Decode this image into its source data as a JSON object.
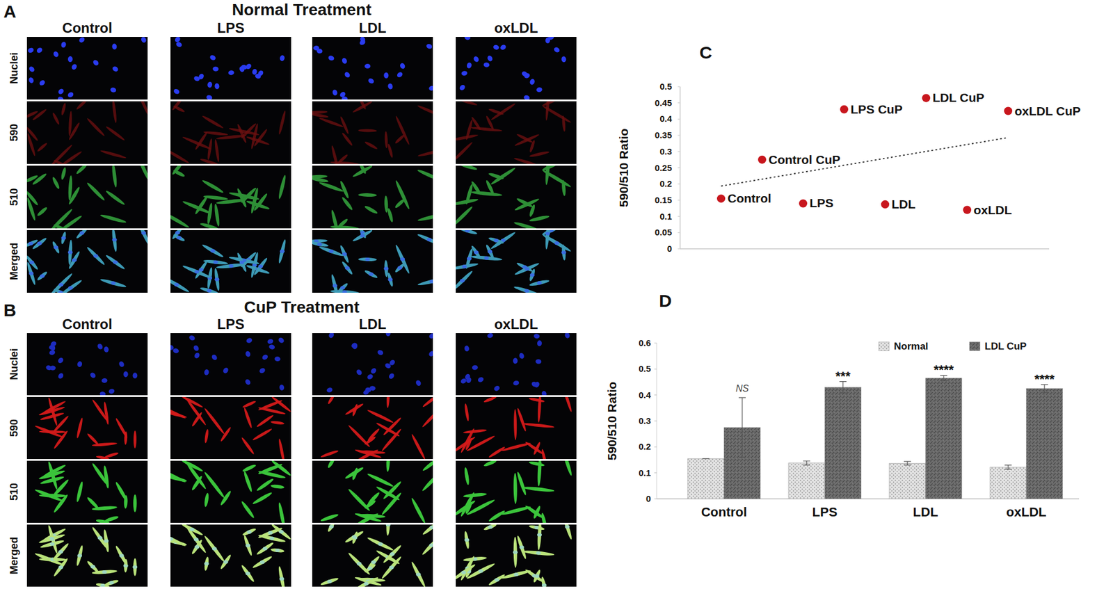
{
  "figure": {
    "panels": [
      {
        "letter": "A",
        "title": "Normal Treatment",
        "columns": [
          "Control",
          "LPS",
          "LDL",
          "oxLDL"
        ],
        "rows": [
          "Nuclei",
          "590",
          "510",
          "Merged"
        ]
      },
      {
        "letter": "B",
        "title": "CuP Treatment",
        "columns": [
          "Control",
          "LPS",
          "LDL",
          "oxLDL"
        ],
        "rows": [
          "Nuclei",
          "590",
          "510",
          "Merged"
        ]
      }
    ]
  },
  "chart_data": [
    {
      "letter": "C",
      "type": "scatter",
      "y_label": "590/510 Ratio",
      "xlim": [
        0,
        9
      ],
      "ylim": [
        0,
        0.5
      ],
      "yticks": [
        0,
        0.05,
        0.1,
        0.15,
        0.2,
        0.25,
        0.3,
        0.35,
        0.4,
        0.45,
        0.5
      ],
      "tick_labels": "y",
      "series": [
        {
          "type": "scatter",
          "marker": "circle",
          "color": "#c8161d",
          "x": [
            1,
            2,
            3,
            4,
            5,
            6,
            7,
            8
          ],
          "values": [
            0.155,
            0.275,
            0.14,
            0.43,
            0.137,
            0.465,
            0.12,
            0.425
          ],
          "labels": [
            "Control",
            "Control CuP",
            "LPS",
            "LPS CuP",
            "LDL",
            "LDL CuP",
            "oxLDL",
            "oxLDL CuP"
          ]
        },
        {
          "type": "line",
          "line_style": "dotted",
          "color": "#333333",
          "x": [
            1,
            8
          ],
          "values": [
            0.1935,
            0.343
          ]
        }
      ]
    },
    {
      "letter": "D",
      "type": "bar",
      "y_label": "590/510 Ratio",
      "categories": [
        "Control",
        "LPS",
        "LDL",
        "oxLDL"
      ],
      "ylim": [
        0,
        0.6
      ],
      "yticks": [
        0,
        0.1,
        0.2,
        0.3,
        0.4,
        0.5,
        0.6
      ],
      "legend": "top-right",
      "series": [
        {
          "name": "Normal",
          "color": "#e4e4e4",
          "values": [
            0.155,
            0.138,
            0.137,
            0.122
          ],
          "errors": [
            0,
            0.008,
            0.007,
            0.008
          ]
        },
        {
          "name": "LDL CuP",
          "color": "#6a6a6a",
          "values": [
            0.275,
            0.43,
            0.465,
            0.425
          ],
          "errors": [
            0.115,
            0.022,
            0.01,
            0.015
          ]
        }
      ],
      "annotations": [
        "NS",
        "***",
        "****",
        "****"
      ]
    }
  ]
}
